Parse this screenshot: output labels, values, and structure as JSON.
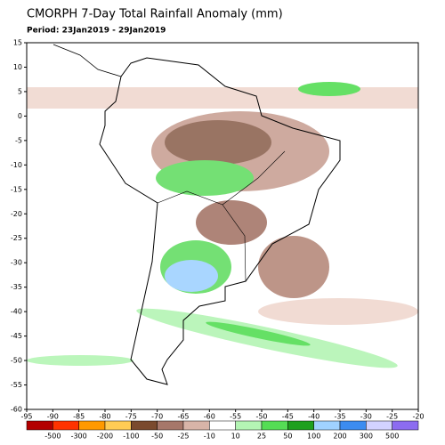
{
  "title": "CMORPH 7-Day Total Rainfall Anomaly (mm)",
  "period": "Period: 23Jan2019 - 29Jan2019",
  "map": {
    "xlim": [
      -95,
      -20
    ],
    "ylim": [
      -60,
      15
    ],
    "xticks": [
      -95,
      -90,
      -85,
      -80,
      -75,
      -70,
      -65,
      -60,
      -55,
      -50,
      -45,
      -40,
      -35,
      -30,
      -25,
      -20
    ],
    "yticks": [
      15,
      10,
      5,
      0,
      -5,
      -10,
      -15,
      -20,
      -25,
      -30,
      -35,
      -40,
      -45,
      -50,
      -55,
      -60
    ]
  },
  "colorbar": {
    "labels": [
      -500,
      -300,
      -200,
      -100,
      -50,
      -25,
      -10,
      10,
      25,
      50,
      100,
      200,
      300,
      500
    ],
    "colors": [
      "#b30000",
      "#ff3300",
      "#ff9900",
      "#ffcc55",
      "#7a4a2e",
      "#a6776a",
      "#d8b4a8",
      "#ffffff",
      "#b4f5b4",
      "#55dd55",
      "#1ea01e",
      "#a0d2ff",
      "#3c8cf0",
      "#d2d2ff",
      "#8c6cf0"
    ]
  }
}
